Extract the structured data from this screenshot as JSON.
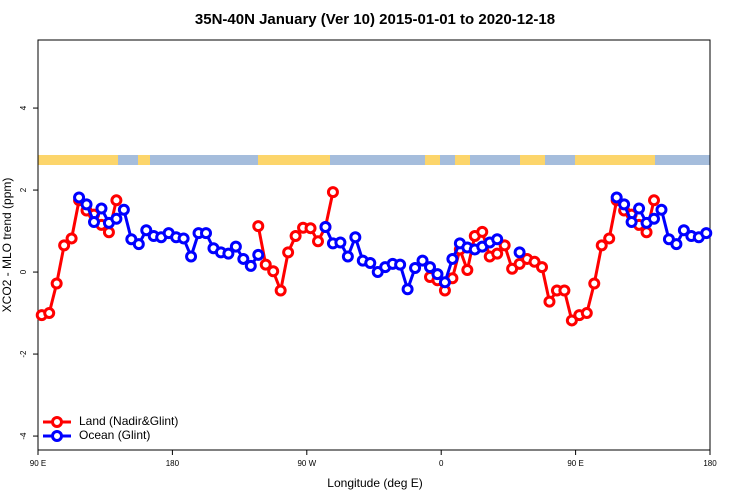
{
  "chart_data": {
    "type": "line",
    "title": "35N-40N January (Ver 10)   2015-01-01 to 2020-12-18",
    "x_label": "Longitude (deg E)",
    "y_label": "XCO2 - MLO trend (ppm)",
    "xlim": [
      90,
      540
    ],
    "xticks": [
      {
        "value": 90,
        "label": "90 E"
      },
      180,
      {
        "value": 270,
        "label": "90 W"
      },
      {
        "value": 360,
        "label": "0"
      },
      {
        "value": 450,
        "label": "90 E"
      },
      {
        "value": 540,
        "label": "180"
      }
    ],
    "ylim": [
      -4.34,
      5.66
    ],
    "yticks": [
      -4,
      -2,
      0,
      2,
      4
    ],
    "legend_position": "bottom-left",
    "x": [
      92.5,
      97.5,
      102.5,
      107.5,
      112.5,
      117.5,
      122.5,
      127.5,
      132.5,
      137.5,
      142.5,
      147.5,
      152.5,
      157.5,
      162.5,
      167.5,
      172.5,
      177.5,
      182.5,
      187.5,
      192.5,
      197.5,
      202.5,
      207.5,
      212.5,
      217.5,
      222.5,
      227.5,
      232.5,
      237.5,
      242.5,
      247.5,
      252.5,
      257.5,
      262.5,
      267.5,
      272.5,
      277.5,
      282.5,
      287.5,
      292.5,
      297.5,
      302.5,
      307.5,
      312.5,
      317.5,
      322.5,
      327.5,
      332.5,
      337.5,
      342.5,
      347.5,
      352.5,
      357.5,
      362.5,
      367.5,
      372.5,
      377.5,
      382.5,
      387.5,
      392.5,
      397.5,
      402.5,
      407.5,
      412.5,
      417.5,
      422.5,
      427.5,
      432.5,
      437.5,
      442.5,
      447.5,
      452.5,
      457.5,
      462.5,
      467.5,
      472.5,
      477.5,
      482.5,
      487.5,
      492.5,
      497.5,
      502.5,
      507.5,
      512.5,
      517.5,
      522.5,
      527.5,
      532.5,
      537.5
    ],
    "series": [
      {
        "name": "Land (Nadir&Glint)",
        "color": "#ff0000",
        "values": [
          -1.05,
          -1.0,
          -0.28,
          0.65,
          0.82,
          1.75,
          1.5,
          1.4,
          1.15,
          0.97,
          1.75,
          null,
          null,
          null,
          null,
          null,
          null,
          null,
          null,
          null,
          null,
          null,
          null,
          null,
          null,
          null,
          null,
          null,
          null,
          1.12,
          0.18,
          0.02,
          -0.45,
          0.48,
          0.88,
          1.08,
          1.07,
          0.75,
          1.1,
          1.95,
          null,
          null,
          null,
          null,
          null,
          null,
          null,
          null,
          null,
          null,
          null,
          null,
          -0.12,
          -0.2,
          -0.45,
          -0.15,
          0.55,
          0.05,
          0.88,
          0.98,
          0.38,
          0.45,
          0.65,
          0.08,
          0.2,
          0.32,
          0.25,
          0.12,
          -0.72,
          -0.45,
          -0.45,
          -1.18,
          -1.05,
          -1.0,
          -0.28,
          0.65,
          0.82,
          1.75,
          1.5,
          1.4,
          1.15,
          0.97,
          1.75,
          null,
          null,
          null,
          null,
          null,
          null,
          null
        ]
      },
      {
        "name": "Ocean (Glint)",
        "color": "#0000ff",
        "values": [
          null,
          null,
          null,
          null,
          null,
          1.82,
          1.65,
          1.22,
          1.55,
          1.2,
          1.3,
          1.52,
          0.8,
          0.68,
          1.02,
          0.88,
          0.85,
          0.95,
          0.85,
          0.82,
          0.38,
          0.95,
          0.95,
          0.58,
          0.48,
          0.45,
          0.62,
          0.32,
          0.15,
          0.42,
          null,
          null,
          null,
          null,
          null,
          null,
          null,
          null,
          1.1,
          0.7,
          0.72,
          0.38,
          0.85,
          0.28,
          0.22,
          0.0,
          0.12,
          0.2,
          0.18,
          -0.42,
          0.1,
          0.28,
          0.12,
          -0.05,
          -0.25,
          0.32,
          0.7,
          0.6,
          0.55,
          0.62,
          0.72,
          0.8,
          null,
          null,
          0.48,
          null,
          null,
          null,
          null,
          null,
          null,
          null,
          null,
          null,
          null,
          null,
          null,
          1.82,
          1.65,
          1.22,
          1.55,
          1.2,
          1.3,
          1.52,
          0.8,
          0.68,
          1.02,
          0.88,
          0.85,
          0.95
        ]
      }
    ]
  }
}
